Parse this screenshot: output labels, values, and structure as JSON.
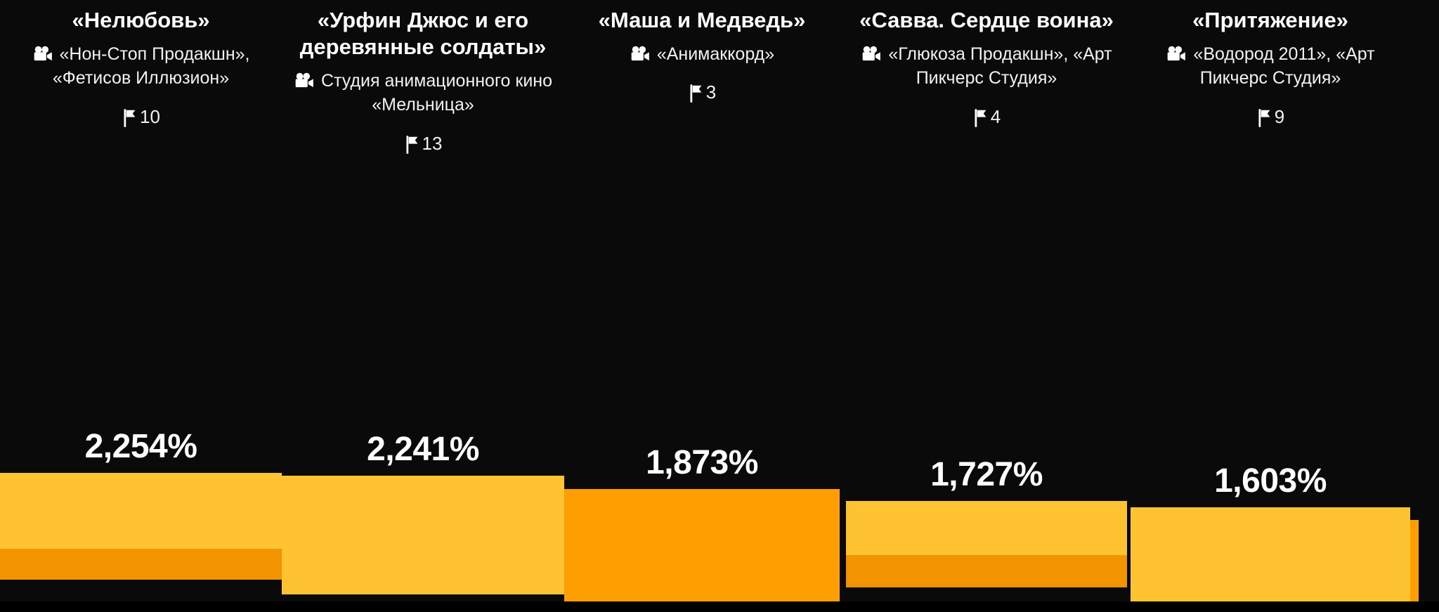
{
  "chart_data": {
    "type": "bar",
    "title": "",
    "ylabel": "",
    "xlabel": "",
    "unit": "%",
    "legend": "none",
    "grid": "off",
    "categories": [
      "«Нелюбовь»",
      "«Урфин Джюс и его деревянные солдаты»",
      "«Маша и Медведь»",
      "«Савва. Сердце воина»",
      "«Притяжение»"
    ],
    "values": [
      2254,
      2241,
      1873,
      1727,
      1603
    ],
    "value_labels": [
      "2,254%",
      "2,241%",
      "1,873%",
      "1,727%",
      "1,603%"
    ],
    "items": [
      {
        "title": "«Нелюбовь»",
        "studio": "«Нон-Стоп Продакшн», «Фетисов Иллюзион»",
        "flags": "10",
        "value": 2254,
        "value_label": "2,254%"
      },
      {
        "title": "«Урфин Джюс и его деревянные солдаты»",
        "studio": "Студия анимационного кино «Мельница»",
        "flags": "13",
        "value": 2241,
        "value_label": "2,241%"
      },
      {
        "title": "«Маша и Медведь»",
        "studio": "«Анимаккорд»",
        "flags": "3",
        "value": 1873,
        "value_label": "1,873%"
      },
      {
        "title": "«Савва. Сердце воина»",
        "studio": "«Глюкоза Продакшн», «Арт Пикчерс Студия»",
        "flags": "4",
        "value": 1727,
        "value_label": "1,727%"
      },
      {
        "title": "«Притяжение»",
        "studio": "«Водород 2011», «Арт Пикчерс Студия»",
        "flags": "9",
        "value": 1603,
        "value_label": "1,603%"
      }
    ],
    "icons": {
      "studio_icon": "movie-camera-icon",
      "count_icon": "flag-icon"
    },
    "colors": {
      "background": "#0a0a0a",
      "bar_light": "#ffc230",
      "bar_dark": "#ff9e00",
      "bar_shadow": "#f29400",
      "bottom_strip": "#000000",
      "text": "#ffffff"
    }
  }
}
